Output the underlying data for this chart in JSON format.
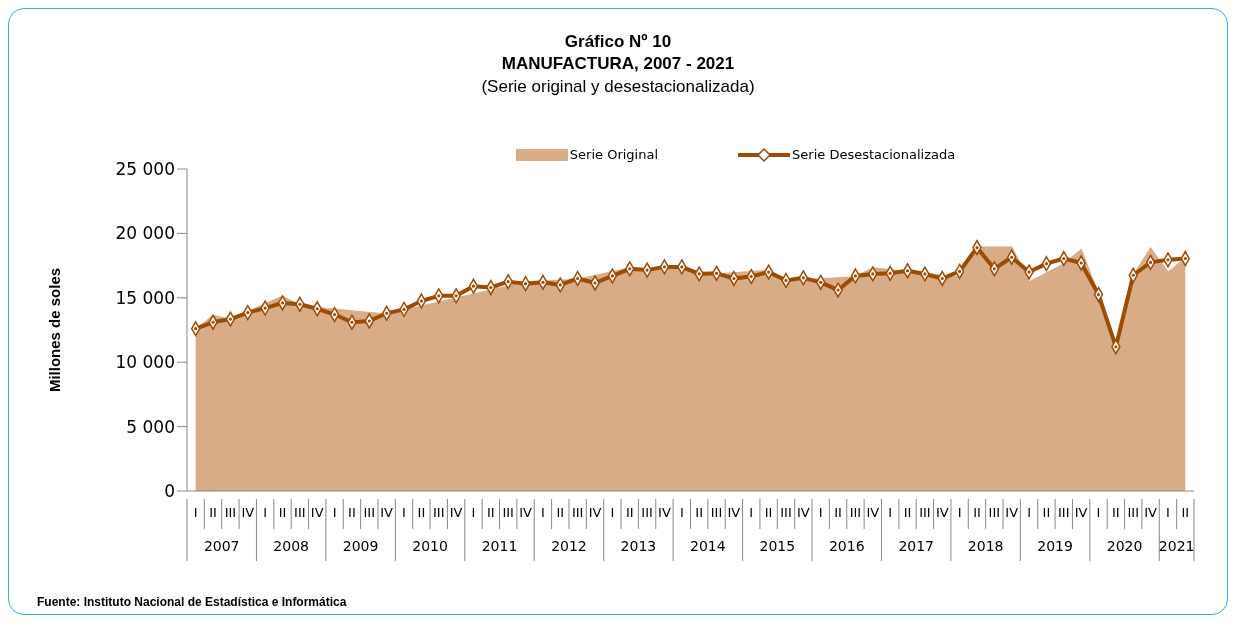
{
  "chart_data": {
    "type": "area",
    "title": "Gráfico Nº 10\nMANUFACTURA, 2007 - 2021",
    "subtitle": "(Serie original y desestacionalizada)",
    "ylabel": "Millones de soles",
    "categories": [
      "I",
      "II",
      "III",
      "IV",
      "I",
      "II",
      "III",
      "IV",
      "I",
      "II",
      "III",
      "IV",
      "I",
      "II",
      "III",
      "IV",
      "I",
      "II",
      "III",
      "IV",
      "I",
      "II",
      "III",
      "IV",
      "I",
      "II",
      "III",
      "IV",
      "I",
      "II",
      "III",
      "IV",
      "I",
      "II",
      "III",
      "IV",
      "I",
      "II",
      "III",
      "IV",
      "I",
      "II",
      "III",
      "IV",
      "I",
      "II",
      "III",
      "IV",
      "I",
      "II",
      "III",
      "IV",
      "I",
      "II",
      "III",
      "IV",
      "I",
      "II"
    ],
    "series": [
      {
        "name": "Serie Original",
        "color": "#d9ac88",
        "values": [
          12500,
          13600,
          13300,
          13900,
          null,
          15100,
          14400,
          14200,
          null,
          null,
          null,
          13700,
          null,
          null,
          null,
          null,
          null,
          null,
          null,
          16200,
          null,
          null,
          16400,
          null,
          null,
          17300,
          17100,
          17500,
          null,
          null,
          16800,
          null,
          null,
          17100,
          16300,
          null,
          null,
          null,
          16600,
          17300,
          null,
          null,
          null,
          null,
          16600,
          18900,
          null,
          18900,
          16200,
          null,
          17600,
          18700,
          15200,
          11200,
          16700,
          18800,
          16950,
          18050
        ]
      },
      {
        "name": "Serie Desestacionalizada",
        "type": "line",
        "color": "#9e4b05",
        "marker": "diamond",
        "values": [
          12600,
          13100,
          13350,
          13850,
          14200,
          14600,
          14500,
          14150,
          13700,
          13100,
          13200,
          13800,
          14100,
          14750,
          15150,
          15150,
          15900,
          15800,
          16250,
          16100,
          16200,
          16000,
          16500,
          16150,
          16700,
          17250,
          17150,
          17400,
          17400,
          16850,
          16900,
          16500,
          16650,
          17000,
          16350,
          16550,
          16200,
          15600,
          16700,
          16850,
          16900,
          17100,
          16850,
          16500,
          17050,
          18900,
          17250,
          18150,
          17000,
          17650,
          18050,
          17700,
          15250,
          11200,
          16750,
          17750,
          17950,
          18050
        ]
      }
    ],
    "ylim": [
      0,
      25000
    ],
    "yticks": [
      0,
      {
        "value": 5000,
        "label": "5 000"
      },
      {
        "value": 10000,
        "label": "10 000"
      },
      {
        "value": 15000,
        "label": "15 000"
      },
      {
        "value": 20000,
        "label": "20 000"
      },
      {
        "value": 25000,
        "label": "25 000"
      }
    ],
    "grid": false,
    "legend": "top",
    "annotations": [
      "2007",
      "2008",
      "2009",
      "2010",
      "2011",
      "2012",
      "2013",
      "2014",
      "2015",
      "2016",
      "2017",
      "2018",
      "2019",
      "2020",
      "2021",
      "Fuente: Instituto Nacional de Estadística e Informática"
    ]
  }
}
